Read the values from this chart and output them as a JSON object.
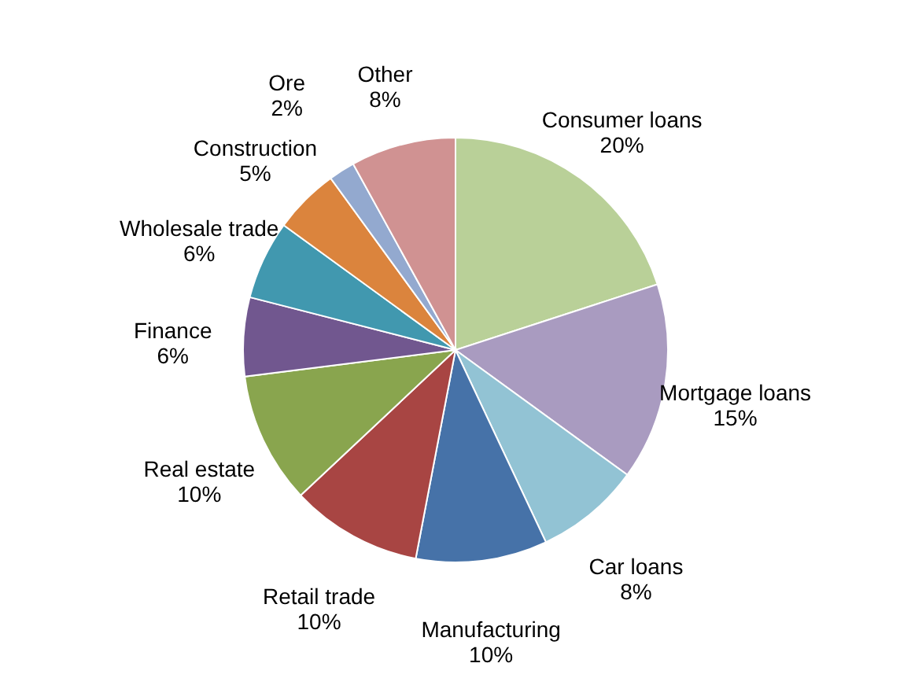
{
  "chart_data": {
    "type": "pie",
    "categories": [
      "Consumer loans",
      "Mortgage loans",
      "Car loans",
      "Manufacturing",
      "Retail trade",
      "Real estate",
      "Finance",
      "Wholesale trade",
      "Construction",
      "Ore",
      "Other"
    ],
    "values": [
      20,
      15,
      8,
      10,
      10,
      10,
      6,
      6,
      5,
      2,
      8
    ],
    "value_labels": [
      "20%",
      "15%",
      "8%",
      "10%",
      "10%",
      "10%",
      "6%",
      "6%",
      "5%",
      "2%",
      "8%"
    ],
    "colors": [
      "#b9d098",
      "#a99bc0",
      "#92c3d4",
      "#4672a8",
      "#a84543",
      "#89a54e",
      "#71578f",
      "#4198af",
      "#db843d",
      "#93a9cf",
      "#d09292"
    ],
    "legend": false
  }
}
